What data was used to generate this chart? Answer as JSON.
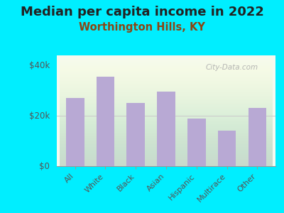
{
  "title": "Median per capita income in 2022",
  "subtitle": "Worthington Hills, KY",
  "categories": [
    "All",
    "White",
    "Black",
    "Asian",
    "Hispanic",
    "Multirace",
    "Other"
  ],
  "values": [
    27000,
    35500,
    25000,
    29500,
    19000,
    14000,
    23000
  ],
  "bar_color": "#b8a9d4",
  "background_outer": "#00eeff",
  "title_color": "#222222",
  "subtitle_color": "#8b4513",
  "tick_color": "#555555",
  "ylim": [
    0,
    44000
  ],
  "yticks": [
    0,
    20000,
    40000
  ],
  "ytick_labels": [
    "$0",
    "$20k",
    "$40k"
  ],
  "title_fontsize": 13,
  "subtitle_fontsize": 10.5,
  "watermark": "City-Data.com"
}
